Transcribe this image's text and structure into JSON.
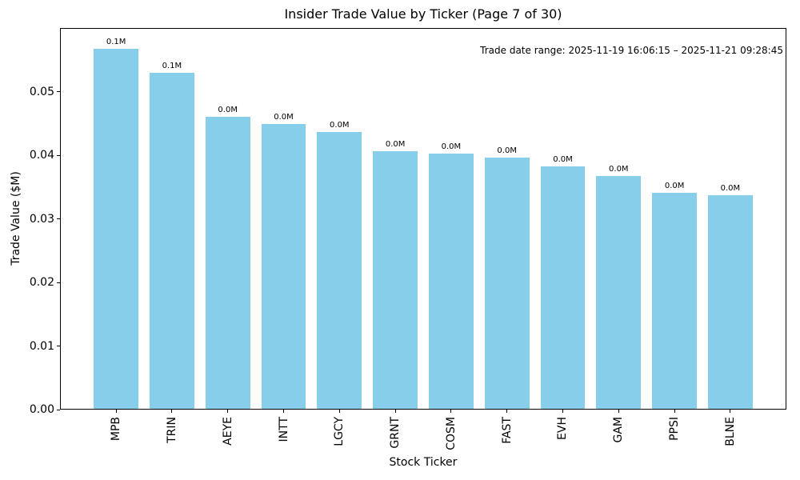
{
  "figure": {
    "background_color": "#ffffff",
    "text_color": "#000000"
  },
  "chart_data": {
    "type": "bar",
    "title": "Insider Trade Value by Ticker (Page 7 of 30)",
    "xlabel": "Stock Ticker",
    "ylabel": "Trade Value ($M)",
    "categories": [
      "MPB",
      "TRIN",
      "AEYE",
      "INTT",
      "LGCY",
      "GRNT",
      "COSM",
      "FAST",
      "EVH",
      "GAM",
      "PPSI",
      "BLNE"
    ],
    "values": [
      0.0566,
      0.0529,
      0.046,
      0.0448,
      0.0436,
      0.0405,
      0.0401,
      0.0395,
      0.0382,
      0.0366,
      0.034,
      0.0336
    ],
    "bar_labels": [
      "0.1M",
      "0.1M",
      "0.0M",
      "0.0M",
      "0.0M",
      "0.0M",
      "0.0M",
      "0.0M",
      "0.0M",
      "0.0M",
      "0.0M",
      "0.0M"
    ],
    "ytick_values": [
      0,
      0.01,
      0.02,
      0.03,
      0.04,
      0.05
    ],
    "ytick_labels": [
      "0.00",
      "0.01",
      "0.02",
      "0.03",
      "0.04",
      "0.05"
    ],
    "ylim": [
      0,
      0.0598
    ],
    "grid": false,
    "legend": "none",
    "bar_color": "#87ceeb",
    "annotation": "Trade date range: 2025-11-19 16:06:15 – 2025-11-21 09:28:45"
  }
}
